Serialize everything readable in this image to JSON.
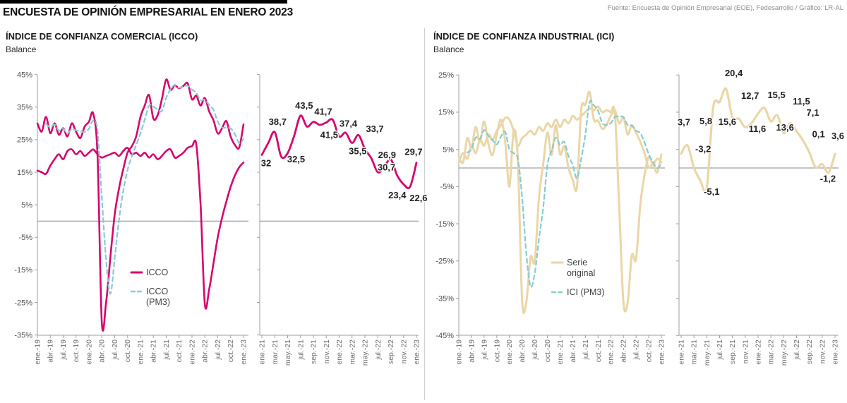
{
  "header": {
    "title": "ENCUESTA DE OPINIÓN EMPRESARIAL EN ENERO 2023",
    "source": "Fuente: Encuesta de Opinión Empresarial (EOE), Fedesarrollo / Gráfico: LR-AL"
  },
  "panels": [
    {
      "title": "ÍNDICE DE CONFIANZA COMERCIAL (ICCO)",
      "unit": "Balance"
    },
    {
      "title": "ÍNDICE DE CONFIANZA INDUSTRIAL (ICI)",
      "unit": "Balance"
    }
  ],
  "colors": {
    "icco": "#d5056e",
    "ici": "#ead6a7",
    "pm3": "#88cbd2",
    "zero_line": "#8a8a8a",
    "axis": "#9d9fa2",
    "data_label": "#231f20"
  },
  "chart_data": [
    {
      "id": "icco",
      "type": "line",
      "title": "ÍNDICE DE CONFIANZA COMERCIAL (ICCO)",
      "ylabel": "Balance",
      "ylim": [
        -35,
        45
      ],
      "y_tick_labels": [
        "45%",
        "35%",
        "25%",
        "15%",
        "5%",
        "-5%",
        "-15%",
        "-25%",
        "-35%"
      ],
      "x_tick_labels_main": [
        "ene.-19",
        "abr.-19",
        "jul.-19",
        "oct.-19",
        "ene.-20",
        "abr.-20",
        "jul.-20",
        "oct.-20",
        "ene.-21",
        "abr.-21",
        "jul.-21",
        "oct.-21",
        "ene.-22",
        "abr.-22",
        "jul.-22",
        "oct.-22",
        "ene.-23"
      ],
      "x_tick_labels_zoom": [
        "ene.-21",
        "mar.-21",
        "may.-21",
        "jul.-21",
        "sep.-21",
        "nov.-21",
        "ene.-22",
        "mar.-22",
        "may.-22",
        "jul.-22",
        "sep.-22",
        "nov.-22",
        "ene.-23"
      ],
      "legend": [
        {
          "lines": [
            "ICCO"
          ],
          "style": "solid",
          "color_key": "icco"
        },
        {
          "lines": [
            "ICCO",
            "(PM3)"
          ],
          "style": "dashed",
          "color_key": "pm3"
        }
      ],
      "series": [
        {
          "name": "ICCO",
          "style": "solid",
          "monthly_values": [
            30,
            27.5,
            32,
            27,
            30,
            26.5,
            28.5,
            26,
            30,
            27.5,
            25.5,
            29,
            30.5,
            33,
            20,
            -31,
            -25,
            -11,
            2,
            10,
            16,
            21,
            23,
            26,
            32,
            35.5,
            38.7,
            31.5,
            32.5,
            37.5,
            43.5,
            40.3,
            41.7,
            40.8,
            41.5,
            42.3,
            37.4,
            38.5,
            35.5,
            37.8,
            33.7,
            31,
            26.9,
            28.5,
            30.7,
            26,
            23.4,
            22.6,
            29.7
          ]
        },
        {
          "name": "ICCO (PM3)",
          "style": "dashed",
          "derivation": "promedio móvil 3 meses de ICCO"
        },
        {
          "name": "(sin etiqueta)",
          "style": "solid",
          "monthly_values": [
            15.5,
            15,
            14.5,
            17,
            19,
            20.5,
            19,
            21.5,
            22,
            20.5,
            21.5,
            20,
            21,
            22,
            20.5,
            19.5,
            20,
            20.5,
            21,
            20,
            21.5,
            22.5,
            20.5,
            21,
            20,
            21,
            19.5,
            20.5,
            19,
            20,
            21.5,
            22,
            19.5,
            20,
            21,
            22.5,
            23,
            23.5,
            5,
            -25.5,
            -21,
            -13,
            -5,
            1,
            6,
            10.5,
            14,
            16.5,
            18
          ]
        }
      ],
      "zoom_point_labels": [
        {
          "x_index": 0,
          "text": "32",
          "value": 32
        },
        {
          "x_index": 2,
          "text": "38,7",
          "value": 38.7
        },
        {
          "x_index": 4,
          "text": "32,5",
          "value": 32.5
        },
        {
          "x_index": 6,
          "text": "43,5",
          "value": 43.5
        },
        {
          "x_index": 8,
          "text": "41,7",
          "value": 41.7
        },
        {
          "x_index": 10,
          "text": "41,5",
          "value": 41.5
        },
        {
          "x_index": 12,
          "text": "37,4",
          "value": 37.4
        },
        {
          "x_index": 14,
          "text": "35,5",
          "value": 35.5
        },
        {
          "x_index": 16,
          "text": "33,7",
          "value": 33.7
        },
        {
          "x_index": 18,
          "text": "26,9",
          "value": 26.9
        },
        {
          "x_index": 20,
          "text": "30,7",
          "value": 30.7
        },
        {
          "x_index": 22,
          "text": "23,4",
          "value": 23.4
        },
        {
          "x_index": 23,
          "text": "22,6",
          "value": 22.6
        },
        {
          "x_index": 24,
          "text": "29,7",
          "value": 29.7
        }
      ]
    },
    {
      "id": "ici",
      "type": "line",
      "title": "ÍNDICE DE CONFIANZA INDUSTRIAL (ICI)",
      "ylabel": "Balance",
      "ylim": [
        -45,
        25
      ],
      "y_tick_labels": [
        "25%",
        "15%",
        "5%",
        "-5%",
        "-15%",
        "-25%",
        "-35%",
        "-45%"
      ],
      "x_tick_labels_main": [
        "ene.-19",
        "abr.-19",
        "jul.-19",
        "oct.-19",
        "ene.-20",
        "abr.-20",
        "jul.-20",
        "oct.-20",
        "ene.-21",
        "abr.-21",
        "jul.-21",
        "oct.-21",
        "ene.-22",
        "abr.-22",
        "jul.-22",
        "oct.-22",
        "ene.-23"
      ],
      "x_tick_labels_zoom": [
        "ene.-21",
        "mar.-21",
        "may.-21",
        "jul.-21",
        "sep.-21",
        "nov.-21",
        "ene.-22",
        "mar.-22",
        "may.-22",
        "jul.-22",
        "sep.-22",
        "nov.-22",
        "ene.-23"
      ],
      "legend": [
        {
          "lines": [
            "Serie",
            "original"
          ],
          "style": "solid",
          "color_key": "ici"
        },
        {
          "lines": [
            "ICI (PM3)"
          ],
          "style": "dashed",
          "color_key": "pm3"
        }
      ],
      "series": [
        {
          "name": "Serie original",
          "style": "solid",
          "monthly_values": [
            3,
            1.5,
            8,
            5.5,
            11,
            7,
            12.5,
            6.5,
            3.5,
            9,
            13,
            7,
            -5,
            10,
            2,
            -35.5,
            -36,
            -24,
            -25,
            -8,
            1,
            9.5,
            3.5,
            11.5,
            3.7,
            5.8,
            0,
            -3.2,
            -5.1,
            15.6,
            17,
            20.4,
            13,
            12.7,
            10.5,
            11.6,
            14,
            15.5,
            12,
            13.6,
            9,
            11.5,
            9.5,
            7.1,
            4,
            0.1,
            1,
            -1.2,
            3.6
          ]
        },
        {
          "name": "ICI (PM3)",
          "style": "dashed",
          "derivation": "promedio móvil 3 meses de Serie original"
        },
        {
          "name": "(sin etiqueta)",
          "style": "solid",
          "monthly_values": [
            1.5,
            4,
            2.5,
            6,
            4,
            7.5,
            6,
            9,
            7.5,
            10,
            11.5,
            13.5,
            13,
            10,
            6,
            8,
            9,
            10,
            9,
            11,
            10,
            12,
            11,
            13,
            11,
            13,
            12,
            14,
            13,
            14,
            15,
            16,
            15.5,
            16.5,
            15,
            15.5,
            15,
            14.5,
            -10,
            -36,
            -36.2,
            -23.5,
            -24.5,
            -10,
            -2,
            3,
            1,
            2.5,
            1.5
          ]
        }
      ],
      "zoom_point_labels": [
        {
          "x_index": 0,
          "text": "3,7",
          "value": 3.7
        },
        {
          "x_index": 1,
          "text": "5,8",
          "value": 5.8
        },
        {
          "x_index": 3,
          "text": "-3,2",
          "value": -3.2
        },
        {
          "x_index": 4,
          "text": "-5,1",
          "value": -5.1
        },
        {
          "x_index": 5,
          "text": "15,6",
          "value": 15.6
        },
        {
          "x_index": 7,
          "text": "20,4",
          "value": 20.4
        },
        {
          "x_index": 9,
          "text": "12,7",
          "value": 12.7
        },
        {
          "x_index": 11,
          "text": "11,6",
          "value": 11.6
        },
        {
          "x_index": 13,
          "text": "15,5",
          "value": 15.5
        },
        {
          "x_index": 15,
          "text": "13,6",
          "value": 13.6
        },
        {
          "x_index": 17,
          "text": "11,5",
          "value": 11.5
        },
        {
          "x_index": 19,
          "text": "7,1",
          "value": 7.1
        },
        {
          "x_index": 21,
          "text": "0,1",
          "value": 0.1
        },
        {
          "x_index": 23,
          "text": "-1,2",
          "value": -1.2
        },
        {
          "x_index": 24,
          "text": "3,6",
          "value": 3.6
        }
      ]
    }
  ]
}
